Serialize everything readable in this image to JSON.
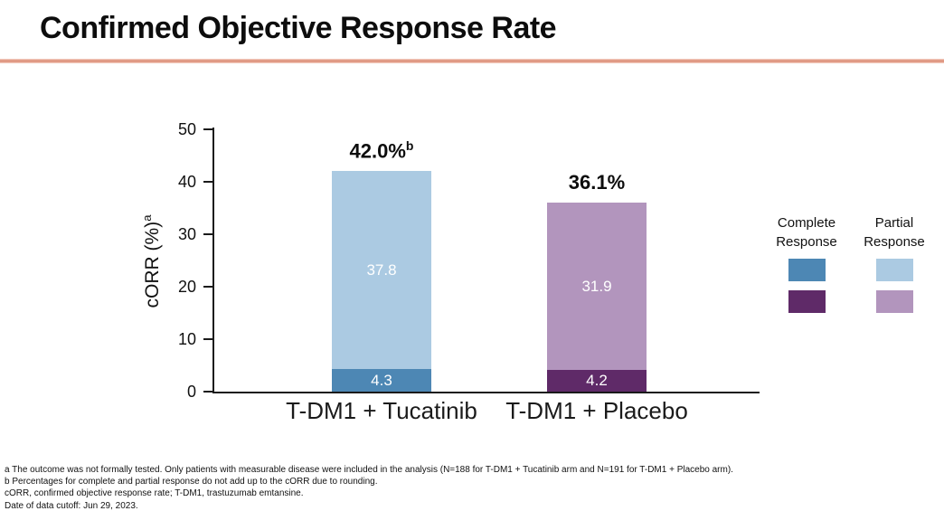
{
  "title": "Confirmed Objective Response Rate",
  "accent_line_color": "#d9876f",
  "chart_data": {
    "type": "bar",
    "stacked": true,
    "title": "Confirmed Objective Response Rate",
    "categories": [
      "T-DM1 + Tucatinib",
      "T-DM1 + Placebo"
    ],
    "series": [
      {
        "name": "Complete Response",
        "values": [
          4.3,
          4.2
        ],
        "labels": [
          "4.3",
          "4.2"
        ],
        "colors": [
          "#4d87b4",
          "#5f2a68"
        ]
      },
      {
        "name": "Partial Response",
        "values": [
          37.8,
          31.9
        ],
        "labels": [
          "37.8",
          "31.9"
        ],
        "colors": [
          "#abcae2",
          "#b295bd"
        ]
      }
    ],
    "total_labels": [
      {
        "text": "42.0%",
        "sup": "b"
      },
      {
        "text": "36.1%",
        "sup": ""
      }
    ],
    "ylabel": "cORR (%)",
    "ylabel_sup": "a",
    "xlabel": "",
    "ylim": [
      0,
      50
    ],
    "yticks": [
      0,
      10,
      20,
      30,
      40,
      50
    ],
    "grid": false,
    "legend_position": "right"
  },
  "legend": {
    "columns": [
      {
        "header_line1": "Complete",
        "header_line2": "Response",
        "swatches": [
          "#4d87b4",
          "#5f2a68"
        ]
      },
      {
        "header_line1": "Partial",
        "header_line2": "Response",
        "swatches": [
          "#abcae2",
          "#b295bd"
        ]
      }
    ]
  },
  "footnotes": [
    "a The outcome was not formally tested. Only patients with measurable disease were included in the analysis (N=188 for T-DM1 + Tucatinib arm and N=191 for T-DM1 + Placebo arm).",
    "b Percentages for complete and partial response do not add up to the cORR due to rounding.",
    "cORR, confirmed objective response rate; T-DM1, trastuzumab emtansine.",
    "Date of data cutoff: Jun 29, 2023."
  ]
}
